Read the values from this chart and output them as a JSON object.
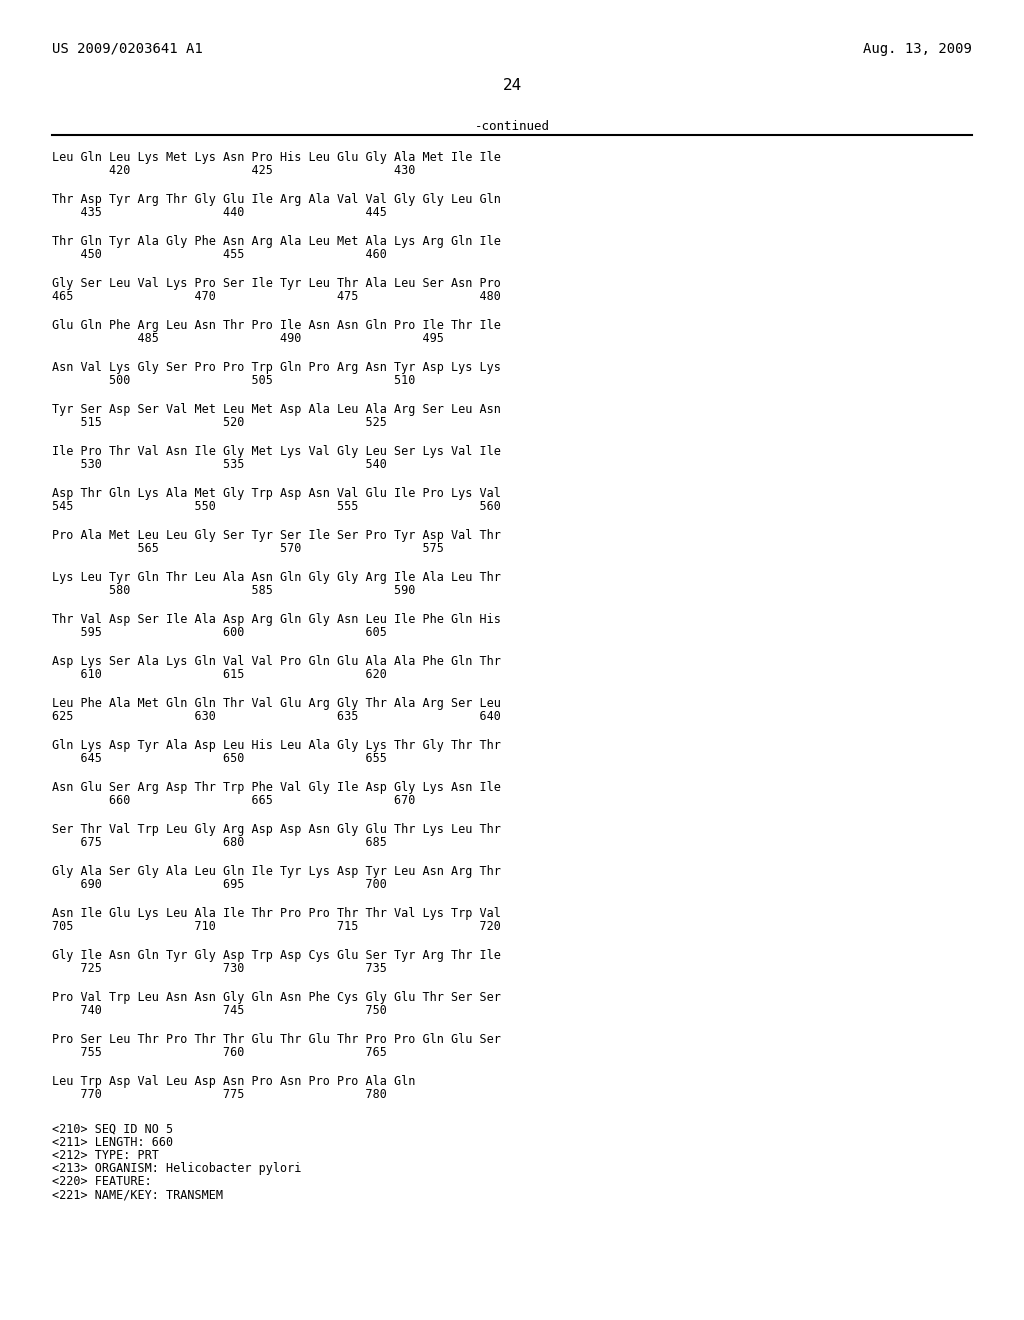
{
  "header_left": "US 2009/0203641 A1",
  "header_right": "Aug. 13, 2009",
  "page_number": "24",
  "continued_label": "-continued",
  "background_color": "#ffffff",
  "text_color": "#000000",
  "lines_data": [
    [
      "Leu Gln Leu Lys Met Lys Asn Pro His Leu Glu Gly Ala Met Ile Ile",
      "        420                 425                 430"
    ],
    [
      "Thr Asp Tyr Arg Thr Gly Glu Ile Arg Ala Val Val Gly Gly Leu Gln",
      "    435                 440                 445"
    ],
    [
      "Thr Gln Tyr Ala Gly Phe Asn Arg Ala Leu Met Ala Lys Arg Gln Ile",
      "    450                 455                 460"
    ],
    [
      "Gly Ser Leu Val Lys Pro Ser Ile Tyr Leu Thr Ala Leu Ser Asn Pro",
      "465                 470                 475                 480"
    ],
    [
      "Glu Gln Phe Arg Leu Asn Thr Pro Ile Asn Asn Gln Pro Ile Thr Ile",
      "            485                 490                 495"
    ],
    [
      "Asn Val Lys Gly Ser Pro Pro Trp Gln Pro Arg Asn Tyr Asp Lys Lys",
      "        500                 505                 510"
    ],
    [
      "Tyr Ser Asp Ser Val Met Leu Met Asp Ala Leu Ala Arg Ser Leu Asn",
      "    515                 520                 525"
    ],
    [
      "Ile Pro Thr Val Asn Ile Gly Met Lys Val Gly Leu Ser Lys Val Ile",
      "    530                 535                 540"
    ],
    [
      "Asp Thr Gln Lys Ala Met Gly Trp Asp Asn Val Glu Ile Pro Lys Val",
      "545                 550                 555                 560"
    ],
    [
      "Pro Ala Met Leu Leu Gly Ser Tyr Ser Ile Ser Pro Tyr Asp Val Thr",
      "            565                 570                 575"
    ],
    [
      "Lys Leu Tyr Gln Thr Leu Ala Asn Gln Gly Gly Arg Ile Ala Leu Thr",
      "        580                 585                 590"
    ],
    [
      "Thr Val Asp Ser Ile Ala Asp Arg Gln Gly Asn Leu Ile Phe Gln His",
      "    595                 600                 605"
    ],
    [
      "Asp Lys Ser Ala Lys Gln Val Val Pro Gln Glu Ala Ala Phe Gln Thr",
      "    610                 615                 620"
    ],
    [
      "Leu Phe Ala Met Gln Gln Thr Val Glu Arg Gly Thr Ala Arg Ser Leu",
      "625                 630                 635                 640"
    ],
    [
      "Gln Lys Asp Tyr Ala Asp Leu His Leu Ala Gly Lys Thr Gly Thr Thr",
      "    645                 650                 655"
    ],
    [
      "Asn Glu Ser Arg Asp Thr Trp Phe Val Gly Ile Asp Gly Lys Asn Ile",
      "        660                 665                 670"
    ],
    [
      "Ser Thr Val Trp Leu Gly Arg Asp Asp Asn Gly Glu Thr Lys Leu Thr",
      "    675                 680                 685"
    ],
    [
      "Gly Ala Ser Gly Ala Leu Gln Ile Tyr Lys Asp Tyr Leu Asn Arg Thr",
      "    690                 695                 700"
    ],
    [
      "Asn Ile Glu Lys Leu Ala Ile Thr Pro Pro Thr Thr Val Lys Trp Val",
      "705                 710                 715                 720"
    ],
    [
      "Gly Ile Asn Gln Tyr Gly Asp Trp Asp Cys Glu Ser Tyr Arg Thr Ile",
      "    725                 730                 735"
    ],
    [
      "Pro Val Trp Leu Asn Asn Gly Gln Asn Phe Cys Gly Glu Thr Ser Ser",
      "    740                 745                 750"
    ],
    [
      "Pro Ser Leu Thr Pro Thr Thr Glu Thr Glu Thr Pro Pro Gln Glu Ser",
      "    755                 760                 765"
    ],
    [
      "Leu Trp Asp Val Leu Asp Asn Pro Asn Pro Pro Ala Gln",
      "    770                 775                 780"
    ]
  ],
  "footer_lines": [
    "<210> SEQ ID NO 5",
    "<211> LENGTH: 660",
    "<212> TYPE: PRT",
    "<213> ORGANISM: Helicobacter pylori",
    "<220> FEATURE:",
    "<221> NAME/KEY: TRANSMEM"
  ],
  "seq_font_size": 8.5,
  "header_font_size": 10.0,
  "page_font_size": 11.5
}
